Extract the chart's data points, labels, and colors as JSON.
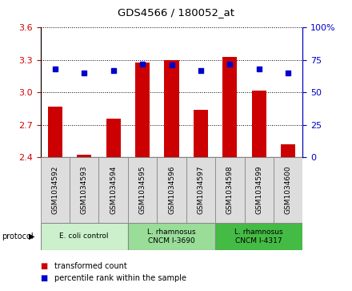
{
  "title": "GDS4566 / 180052_at",
  "samples": [
    "GSM1034592",
    "GSM1034593",
    "GSM1034594",
    "GSM1034595",
    "GSM1034596",
    "GSM1034597",
    "GSM1034598",
    "GSM1034599",
    "GSM1034600"
  ],
  "bar_values": [
    2.87,
    2.42,
    2.76,
    3.28,
    3.3,
    2.84,
    3.33,
    3.02,
    2.52
  ],
  "percentile_values": [
    68,
    65,
    67,
    72,
    71,
    67,
    72,
    68,
    65
  ],
  "bar_color": "#cc0000",
  "dot_color": "#0000cc",
  "ylim_left": [
    2.4,
    3.6
  ],
  "ylim_right": [
    0,
    100
  ],
  "yticks_left": [
    2.4,
    2.7,
    3.0,
    3.3,
    3.6
  ],
  "yticks_right": [
    0,
    25,
    50,
    75,
    100
  ],
  "bar_bottom": 2.4,
  "groups": [
    {
      "label": "E. coli control",
      "start": 0,
      "end": 2,
      "color": "#ccf0cc"
    },
    {
      "label": "L. rhamnosus\nCNCM I-3690",
      "start": 3,
      "end": 5,
      "color": "#99dd99"
    },
    {
      "label": "L. rhamnosus\nCNCM I-4317",
      "start": 6,
      "end": 8,
      "color": "#44bb44"
    }
  ],
  "sample_box_color": "#dddddd",
  "legend_bar_label": "transformed count",
  "legend_dot_label": "percentile rank within the sample",
  "protocol_label": "protocol"
}
